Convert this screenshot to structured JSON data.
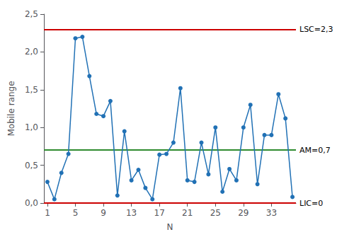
{
  "chart_data": {
    "type": "line",
    "xlabel": "N",
    "ylabel": "Mobile range",
    "x": [
      1,
      2,
      3,
      4,
      5,
      6,
      7,
      8,
      9,
      10,
      11,
      12,
      13,
      14,
      15,
      16,
      17,
      18,
      19,
      20,
      21,
      22,
      23,
      24,
      25,
      26,
      27,
      28,
      29,
      30,
      31,
      32,
      33,
      34,
      35,
      36
    ],
    "values": [
      0.28,
      0.05,
      0.4,
      0.65,
      2.18,
      2.2,
      1.68,
      1.18,
      1.15,
      1.35,
      0.1,
      0.95,
      0.3,
      0.44,
      0.2,
      0.05,
      0.64,
      0.65,
      0.8,
      1.52,
      0.3,
      0.28,
      0.8,
      0.38,
      1.0,
      0.15,
      0.45,
      0.3,
      1.0,
      1.3,
      0.25,
      0.9,
      0.9,
      1.44,
      1.12,
      0.08
    ],
    "color": "#2171b5",
    "marker": "circle",
    "xlim": [
      0.5,
      36.5
    ],
    "xticks": [
      1,
      5,
      9,
      13,
      17,
      21,
      25,
      29,
      33
    ],
    "ylim": [
      0.0,
      2.5
    ],
    "yticks": [
      {
        "value": 0.0,
        "label": "0,0"
      },
      {
        "value": 0.5,
        "label": "0,5"
      },
      {
        "value": 1.0,
        "label": "1,0"
      },
      {
        "value": 1.5,
        "label": "1,5"
      },
      {
        "value": 2.0,
        "label": "2,0"
      },
      {
        "value": 2.5,
        "label": "2,5"
      }
    ],
    "grid": false,
    "annotations": [
      {
        "y": 2.3,
        "text": "LSC=2,3",
        "color": "#cc0000"
      },
      {
        "y": 0.0,
        "text": "LIC=0",
        "color": "#cc0000"
      },
      {
        "y": 0.7,
        "text": "AM=0,7",
        "color": "#2e8b2e"
      }
    ]
  }
}
